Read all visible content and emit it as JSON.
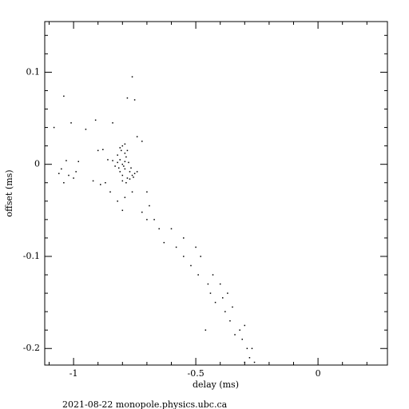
{
  "chart_data": {
    "type": "scatter",
    "x_label": "delay (ms)",
    "y_label": "offset (ms)",
    "footer": "2021-08-22  monopole.physics.ubc.ca",
    "color": "#000000",
    "xlim": [
      -1.118,
      0.284
    ],
    "ylim": [
      -0.218,
      0.155
    ],
    "xticks": [
      -1,
      -0.5,
      0
    ],
    "yticks": [
      -0.2,
      -0.1,
      0,
      0.1
    ],
    "xminorticks": [
      -1.1,
      -0.9,
      -0.8,
      -0.7,
      -0.6,
      -0.4,
      -0.3,
      -0.2,
      -0.1,
      0.1,
      0.2
    ],
    "yminorticks": [
      -0.18,
      -0.16,
      -0.14,
      -0.12,
      -0.08,
      -0.06,
      -0.04,
      -0.02,
      0.02,
      0.04,
      0.06,
      0.08,
      0.12,
      0.14
    ],
    "x": [
      -0.8,
      -0.81,
      -0.79,
      -0.82,
      -0.78,
      -0.8,
      -0.79,
      -0.83,
      -0.77,
      -0.76,
      -0.75,
      -0.74,
      -0.78,
      -0.8,
      -0.81,
      -0.82,
      -0.84,
      -0.79,
      -0.785,
      -0.795,
      -0.805,
      -0.775,
      -0.765,
      -0.755,
      -0.81,
      -0.79,
      -0.8,
      -0.785,
      -0.77,
      -0.815,
      -1.05,
      -1.03,
      -1.06,
      -1.02,
      -1.0,
      -1.04,
      -0.99,
      -0.98,
      -1.08,
      -1.04,
      -0.95,
      -0.9,
      -0.88,
      -0.92,
      -0.89,
      -0.86,
      -0.87,
      -0.85,
      -0.82,
      -0.8,
      -0.79,
      -0.76,
      -0.74,
      -0.72,
      -0.7,
      -0.69,
      -0.75,
      -0.78,
      -0.76,
      -0.84,
      -0.91,
      -1.01,
      -0.72,
      -0.7,
      -0.67,
      -0.65,
      -0.6,
      -0.63,
      -0.58,
      -0.55,
      -0.55,
      -0.52,
      -0.5,
      -0.49,
      -0.48,
      -0.45,
      -0.43,
      -0.44,
      -0.42,
      -0.4,
      -0.38,
      -0.39,
      -0.37,
      -0.36,
      -0.35,
      -0.34,
      -0.32,
      -0.31,
      -0.3,
      -0.29,
      -0.28,
      -0.27,
      -0.26,
      -0.3,
      -0.46
    ],
    "values": [
      0.0,
      0.005,
      -0.005,
      0.01,
      0.015,
      0.02,
      0.012,
      -0.002,
      -0.008,
      -0.012,
      -0.01,
      -0.008,
      -0.015,
      -0.012,
      -0.008,
      0.002,
      0.004,
      0.003,
      0.008,
      -0.002,
      0.015,
      0.002,
      -0.004,
      -0.014,
      0.018,
      0.022,
      -0.018,
      -0.02,
      -0.016,
      -0.004,
      -0.005,
      0.004,
      -0.01,
      -0.012,
      -0.015,
      -0.02,
      -0.008,
      0.003,
      0.04,
      0.074,
      0.038,
      0.015,
      0.016,
      -0.018,
      -0.022,
      0.005,
      -0.02,
      -0.03,
      -0.04,
      -0.05,
      -0.036,
      -0.03,
      0.03,
      0.025,
      -0.03,
      -0.045,
      0.07,
      0.072,
      0.095,
      0.045,
      0.048,
      0.045,
      -0.052,
      -0.06,
      -0.06,
      -0.07,
      -0.07,
      -0.085,
      -0.09,
      -0.08,
      -0.1,
      -0.11,
      -0.09,
      -0.12,
      -0.1,
      -0.13,
      -0.12,
      -0.14,
      -0.15,
      -0.13,
      -0.16,
      -0.145,
      -0.14,
      -0.17,
      -0.155,
      -0.185,
      -0.18,
      -0.19,
      -0.175,
      -0.2,
      -0.21,
      -0.2,
      -0.215,
      -0.215,
      -0.18
    ]
  }
}
